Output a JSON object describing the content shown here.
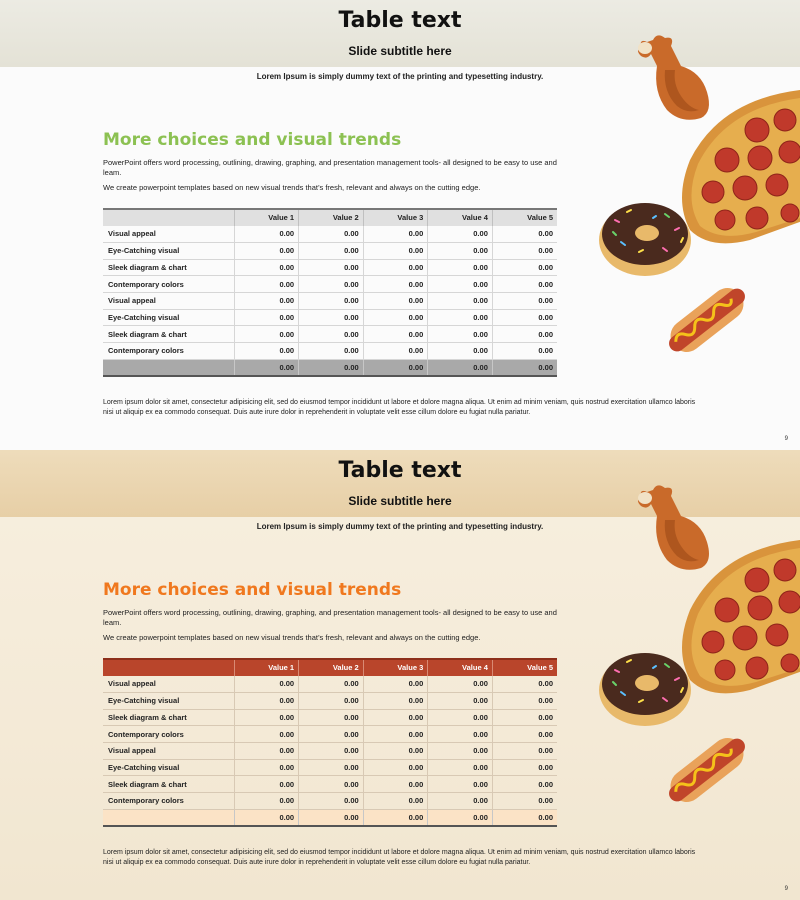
{
  "slides": [
    {
      "title": "Table text",
      "subtitle": "Slide subtitle here",
      "intro": "Lorem Ipsum is simply dummy text of the printing and typesetting industry.",
      "heading": "More choices and visual trends",
      "para1": "PowerPoint offers word processing, outlining, drawing, graphing, and presentation management tools- all designed to be easy to use and leam.",
      "para2": "We create powerpoint templates based on new visual trends that’s fresh, relevant and always on the cutting edge.",
      "footer": "Lorem ipsum dolor sit amet, consectetur adipisicing elit, sed do eiusmod tempor incididunt ut labore et dolore magna aliqua. Ut enim ad minim veniam, quis nostrud exercitation ullamco laboris nisi ut aliquip ex ea commodo consequat. Duis aute irure dolor in reprehenderit in voluptate velit esse cillum dolore eu fugiat nulla pariatur.",
      "page": "9",
      "accent_color": "#8cc152",
      "header_color": "#e0e0e0",
      "total_color": "#a9a9a9"
    },
    {
      "title": "Table text",
      "subtitle": "Slide subtitle here",
      "intro": "Lorem Ipsum is simply dummy text of the printing and typesetting industry.",
      "heading": "More choices and visual trends",
      "para1": "PowerPoint offers word processing, outlining, drawing, graphing, and presentation management tools- all designed to be easy to use and leam.",
      "para2": "We create powerpoint templates based on new visual trends that’s fresh, relevant and always on the cutting edge.",
      "footer": "Lorem ipsum dolor sit amet, consectetur adipisicing elit, sed do eiusmod tempor incididunt ut labore et dolore magna aliqua. Ut enim ad minim veniam, quis nostrud exercitation ullamco laboris nisi ut aliquip ex ea commodo consequat. Duis aute irure dolor in reprehenderit in voluptate velit esse cillum dolore eu fugiat nulla pariatur.",
      "page": "9",
      "accent_color": "#f0781e",
      "header_color": "#b9452b",
      "total_color": "#fbe3c6"
    }
  ],
  "table": {
    "headers": [
      "",
      "Value 1",
      "Value 2",
      "Value 3",
      "Value 4",
      "Value 5"
    ],
    "rows": [
      [
        "Visual appeal",
        "0.00",
        "0.00",
        "0.00",
        "0.00",
        "0.00"
      ],
      [
        "Eye-Catching visual",
        "0.00",
        "0.00",
        "0.00",
        "0.00",
        "0.00"
      ],
      [
        "Sleek diagram & chart",
        "0.00",
        "0.00",
        "0.00",
        "0.00",
        "0.00"
      ],
      [
        "Contemporary colors",
        "0.00",
        "0.00",
        "0.00",
        "0.00",
        "0.00"
      ],
      [
        "Visual appeal",
        "0.00",
        "0.00",
        "0.00",
        "0.00",
        "0.00"
      ],
      [
        "Eye-Catching visual",
        "0.00",
        "0.00",
        "0.00",
        "0.00",
        "0.00"
      ],
      [
        "Sleek diagram & chart",
        "0.00",
        "0.00",
        "0.00",
        "0.00",
        "0.00"
      ],
      [
        "Contemporary colors",
        "0.00",
        "0.00",
        "0.00",
        "0.00",
        "0.00"
      ]
    ],
    "totals": [
      "",
      "0.00",
      "0.00",
      "0.00",
      "0.00",
      "0.00"
    ]
  },
  "food_icons": [
    "chicken-drumstick-icon",
    "pizza-icon",
    "donut-icon",
    "hotdog-icon"
  ]
}
